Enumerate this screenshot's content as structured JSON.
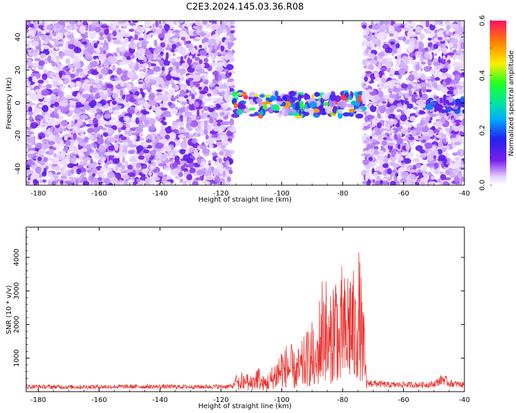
{
  "title": "C2E3.2024.145.03.36.R08",
  "chart_data": [
    {
      "type": "heatmap",
      "xlabel": "Height of straight line (km)",
      "ylabel": "Frequency (Hz)",
      "xlim": [
        -184,
        -40
      ],
      "ylim": [
        -50,
        50
      ],
      "x_ticks": [
        "-180",
        "-160",
        "-140",
        "-120",
        "-100",
        "-80",
        "-60",
        "-40"
      ],
      "y_ticks": [
        "-40",
        "-20",
        "0",
        "20",
        "40"
      ],
      "colorbar": {
        "label": "Normalized spectral amplitude",
        "range": [
          0.0,
          0.6
        ],
        "ticks": [
          "0.0",
          "0.2",
          "0.4",
          "0.6"
        ]
      },
      "regions": [
        {
          "x": [
            -184,
            -116
          ],
          "freq": [
            -50,
            50
          ],
          "amplitude": [
            0.02,
            0.12
          ],
          "description": "broadband noise"
        },
        {
          "x": [
            -116,
            -73
          ],
          "freq": [
            -8,
            6
          ],
          "amplitude": [
            0.1,
            0.6
          ],
          "description": "narrow band near 0 Hz"
        },
        {
          "x": [
            -73,
            -40
          ],
          "freq": [
            -50,
            50
          ],
          "amplitude": [
            0.02,
            0.12
          ],
          "description": "broadband noise"
        },
        {
          "x": [
            -52,
            -40
          ],
          "freq": [
            -6,
            4
          ],
          "amplitude": [
            0.1,
            0.25
          ],
          "description": "weak band"
        }
      ]
    },
    {
      "type": "line",
      "xlabel": "Height of straight line (km)",
      "ylabel": "SNR (10 * v/v)",
      "xlim": [
        -184,
        -40
      ],
      "ylim": [
        0,
        4900
      ],
      "x_ticks": [
        "-180",
        "-160",
        "-140",
        "-120",
        "-100",
        "-80",
        "-60",
        "-40"
      ],
      "y_ticks": [
        "1000",
        "2000",
        "3000",
        "4000"
      ],
      "color": "#e8332f",
      "series": [
        {
          "x": [
            -184,
            -170,
            -160,
            -150,
            -140,
            -130,
            -120,
            -116,
            -113,
            -112,
            -110,
            -108,
            -106,
            -104,
            -102,
            -100,
            -99,
            -98,
            -96,
            -94,
            -92,
            -90,
            -89,
            -88,
            -87,
            -86,
            -85,
            -84,
            -83,
            -82,
            -81,
            -80,
            -79,
            -78,
            -77,
            -76,
            -75,
            -74,
            -73,
            -72,
            -70,
            -65,
            -60,
            -55,
            -50,
            -47,
            -45,
            -40
          ],
          "values": [
            150,
            140,
            145,
            150,
            150,
            145,
            150,
            160,
            680,
            300,
            520,
            880,
            460,
            640,
            1050,
            1500,
            1300,
            1700,
            1200,
            1400,
            1800,
            2200,
            1300,
            2700,
            3400,
            4560,
            2700,
            2900,
            3800,
            4450,
            2300,
            4450,
            3000,
            4400,
            4300,
            3200,
            4900,
            3600,
            2400,
            250,
            250,
            200,
            210,
            200,
            220,
            380,
            250,
            200
          ]
        }
      ]
    }
  ]
}
